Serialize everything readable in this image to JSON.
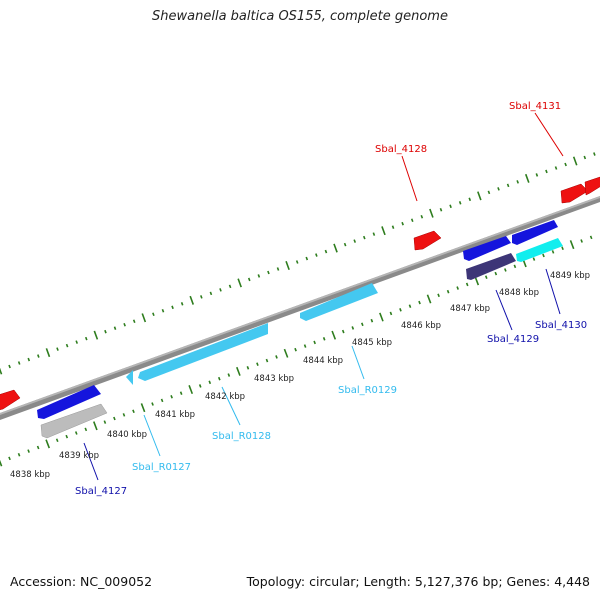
{
  "title": "Shewanella baltica OS155, complete genome",
  "footer": {
    "accession": "Accession: NC_009052",
    "summary": "Topology: circular; Length: 5,127,376 bp; Genes: 4,448"
  },
  "colors": {
    "backbone": "#8a8a8a",
    "tick": "#2e7d1e",
    "red_gene": "#ee1111",
    "blue_gene": "#1515dd",
    "grey_gene": "#bcbcbc",
    "navy_gene": "#3d3577",
    "cyan_gene": "#11eeee",
    "rna_gene": "#44c8f0",
    "red_label": "#dd0000",
    "blue_label": "#1010aa",
    "rna_label": "#33bbee"
  },
  "scale_labels": [
    "4838 kbp",
    "4839 kbp",
    "4840 kbp",
    "4841 kbp",
    "4842 kbp",
    "4843 kbp",
    "4844 kbp",
    "4845 kbp",
    "4846 kbp",
    "4847 kbp",
    "4848 kbp",
    "4849 kbp"
  ],
  "gene_labels": [
    "Sbal_4131",
    "Sbal_4128",
    "Sbal_R0129",
    "Sbal_R0128",
    "Sbal_R0127",
    "Sbal_4127",
    "Sbal_4129",
    "Sbal_4130"
  ]
}
